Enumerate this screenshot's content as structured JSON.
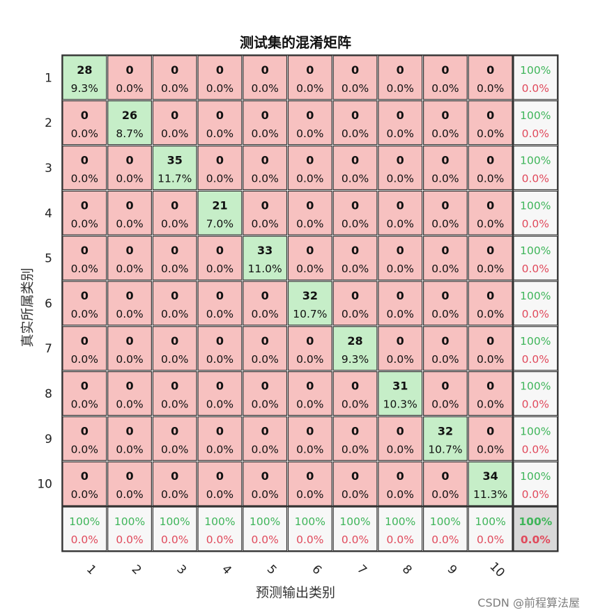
{
  "chart_data": {
    "type": "heatmap",
    "title": "测试集的混淆矩阵",
    "xlabel": "预测输出类别",
    "ylabel": "真实所属类别",
    "x_ticks": [
      "1",
      "2",
      "3",
      "4",
      "5",
      "6",
      "7",
      "8",
      "9",
      "10"
    ],
    "y_ticks": [
      "1",
      "2",
      "3",
      "4",
      "5",
      "6",
      "7",
      "8",
      "9",
      "10"
    ],
    "counts": [
      [
        28,
        0,
        0,
        0,
        0,
        0,
        0,
        0,
        0,
        0
      ],
      [
        0,
        26,
        0,
        0,
        0,
        0,
        0,
        0,
        0,
        0
      ],
      [
        0,
        0,
        35,
        0,
        0,
        0,
        0,
        0,
        0,
        0
      ],
      [
        0,
        0,
        0,
        21,
        0,
        0,
        0,
        0,
        0,
        0
      ],
      [
        0,
        0,
        0,
        0,
        33,
        0,
        0,
        0,
        0,
        0
      ],
      [
        0,
        0,
        0,
        0,
        0,
        32,
        0,
        0,
        0,
        0
      ],
      [
        0,
        0,
        0,
        0,
        0,
        0,
        28,
        0,
        0,
        0
      ],
      [
        0,
        0,
        0,
        0,
        0,
        0,
        0,
        31,
        0,
        0
      ],
      [
        0,
        0,
        0,
        0,
        0,
        0,
        0,
        0,
        32,
        0
      ],
      [
        0,
        0,
        0,
        0,
        0,
        0,
        0,
        0,
        0,
        34
      ]
    ],
    "percents": [
      [
        "9.3%",
        "0.0%",
        "0.0%",
        "0.0%",
        "0.0%",
        "0.0%",
        "0.0%",
        "0.0%",
        "0.0%",
        "0.0%"
      ],
      [
        "0.0%",
        "8.7%",
        "0.0%",
        "0.0%",
        "0.0%",
        "0.0%",
        "0.0%",
        "0.0%",
        "0.0%",
        "0.0%"
      ],
      [
        "0.0%",
        "0.0%",
        "11.7%",
        "0.0%",
        "0.0%",
        "0.0%",
        "0.0%",
        "0.0%",
        "0.0%",
        "0.0%"
      ],
      [
        "0.0%",
        "0.0%",
        "0.0%",
        "7.0%",
        "0.0%",
        "0.0%",
        "0.0%",
        "0.0%",
        "0.0%",
        "0.0%"
      ],
      [
        "0.0%",
        "0.0%",
        "0.0%",
        "0.0%",
        "11.0%",
        "0.0%",
        "0.0%",
        "0.0%",
        "0.0%",
        "0.0%"
      ],
      [
        "0.0%",
        "0.0%",
        "0.0%",
        "0.0%",
        "0.0%",
        "10.7%",
        "0.0%",
        "0.0%",
        "0.0%",
        "0.0%"
      ],
      [
        "0.0%",
        "0.0%",
        "0.0%",
        "0.0%",
        "0.0%",
        "0.0%",
        "9.3%",
        "0.0%",
        "0.0%",
        "0.0%"
      ],
      [
        "0.0%",
        "0.0%",
        "0.0%",
        "0.0%",
        "0.0%",
        "0.0%",
        "0.0%",
        "10.3%",
        "0.0%",
        "0.0%"
      ],
      [
        "0.0%",
        "0.0%",
        "0.0%",
        "0.0%",
        "0.0%",
        "0.0%",
        "0.0%",
        "0.0%",
        "10.7%",
        "0.0%"
      ],
      [
        "0.0%",
        "0.0%",
        "0.0%",
        "0.0%",
        "0.0%",
        "0.0%",
        "0.0%",
        "0.0%",
        "0.0%",
        "11.3%"
      ]
    ],
    "row_summary": [
      [
        "100%",
        "0.0%"
      ],
      [
        "100%",
        "0.0%"
      ],
      [
        "100%",
        "0.0%"
      ],
      [
        "100%",
        "0.0%"
      ],
      [
        "100%",
        "0.0%"
      ],
      [
        "100%",
        "0.0%"
      ],
      [
        "100%",
        "0.0%"
      ],
      [
        "100%",
        "0.0%"
      ],
      [
        "100%",
        "0.0%"
      ],
      [
        "100%",
        "0.0%"
      ]
    ],
    "col_summary": [
      [
        "100%",
        "0.0%"
      ],
      [
        "100%",
        "0.0%"
      ],
      [
        "100%",
        "0.0%"
      ],
      [
        "100%",
        "0.0%"
      ],
      [
        "100%",
        "0.0%"
      ],
      [
        "100%",
        "0.0%"
      ],
      [
        "100%",
        "0.0%"
      ],
      [
        "100%",
        "0.0%"
      ],
      [
        "100%",
        "0.0%"
      ],
      [
        "100%",
        "0.0%"
      ]
    ],
    "overall": [
      "100%",
      "0.0%"
    ],
    "colors": {
      "correct_fill": "#c6eec8",
      "error_fill": "#f7c1c0",
      "summary_fill": "#f7f7f7",
      "overall_fill": "#d8d8d8",
      "good_text": "#3fb55a",
      "bad_text": "#e04a5c",
      "grid_line": "#333333"
    }
  },
  "watermark": "CSDN @前程算法屋"
}
